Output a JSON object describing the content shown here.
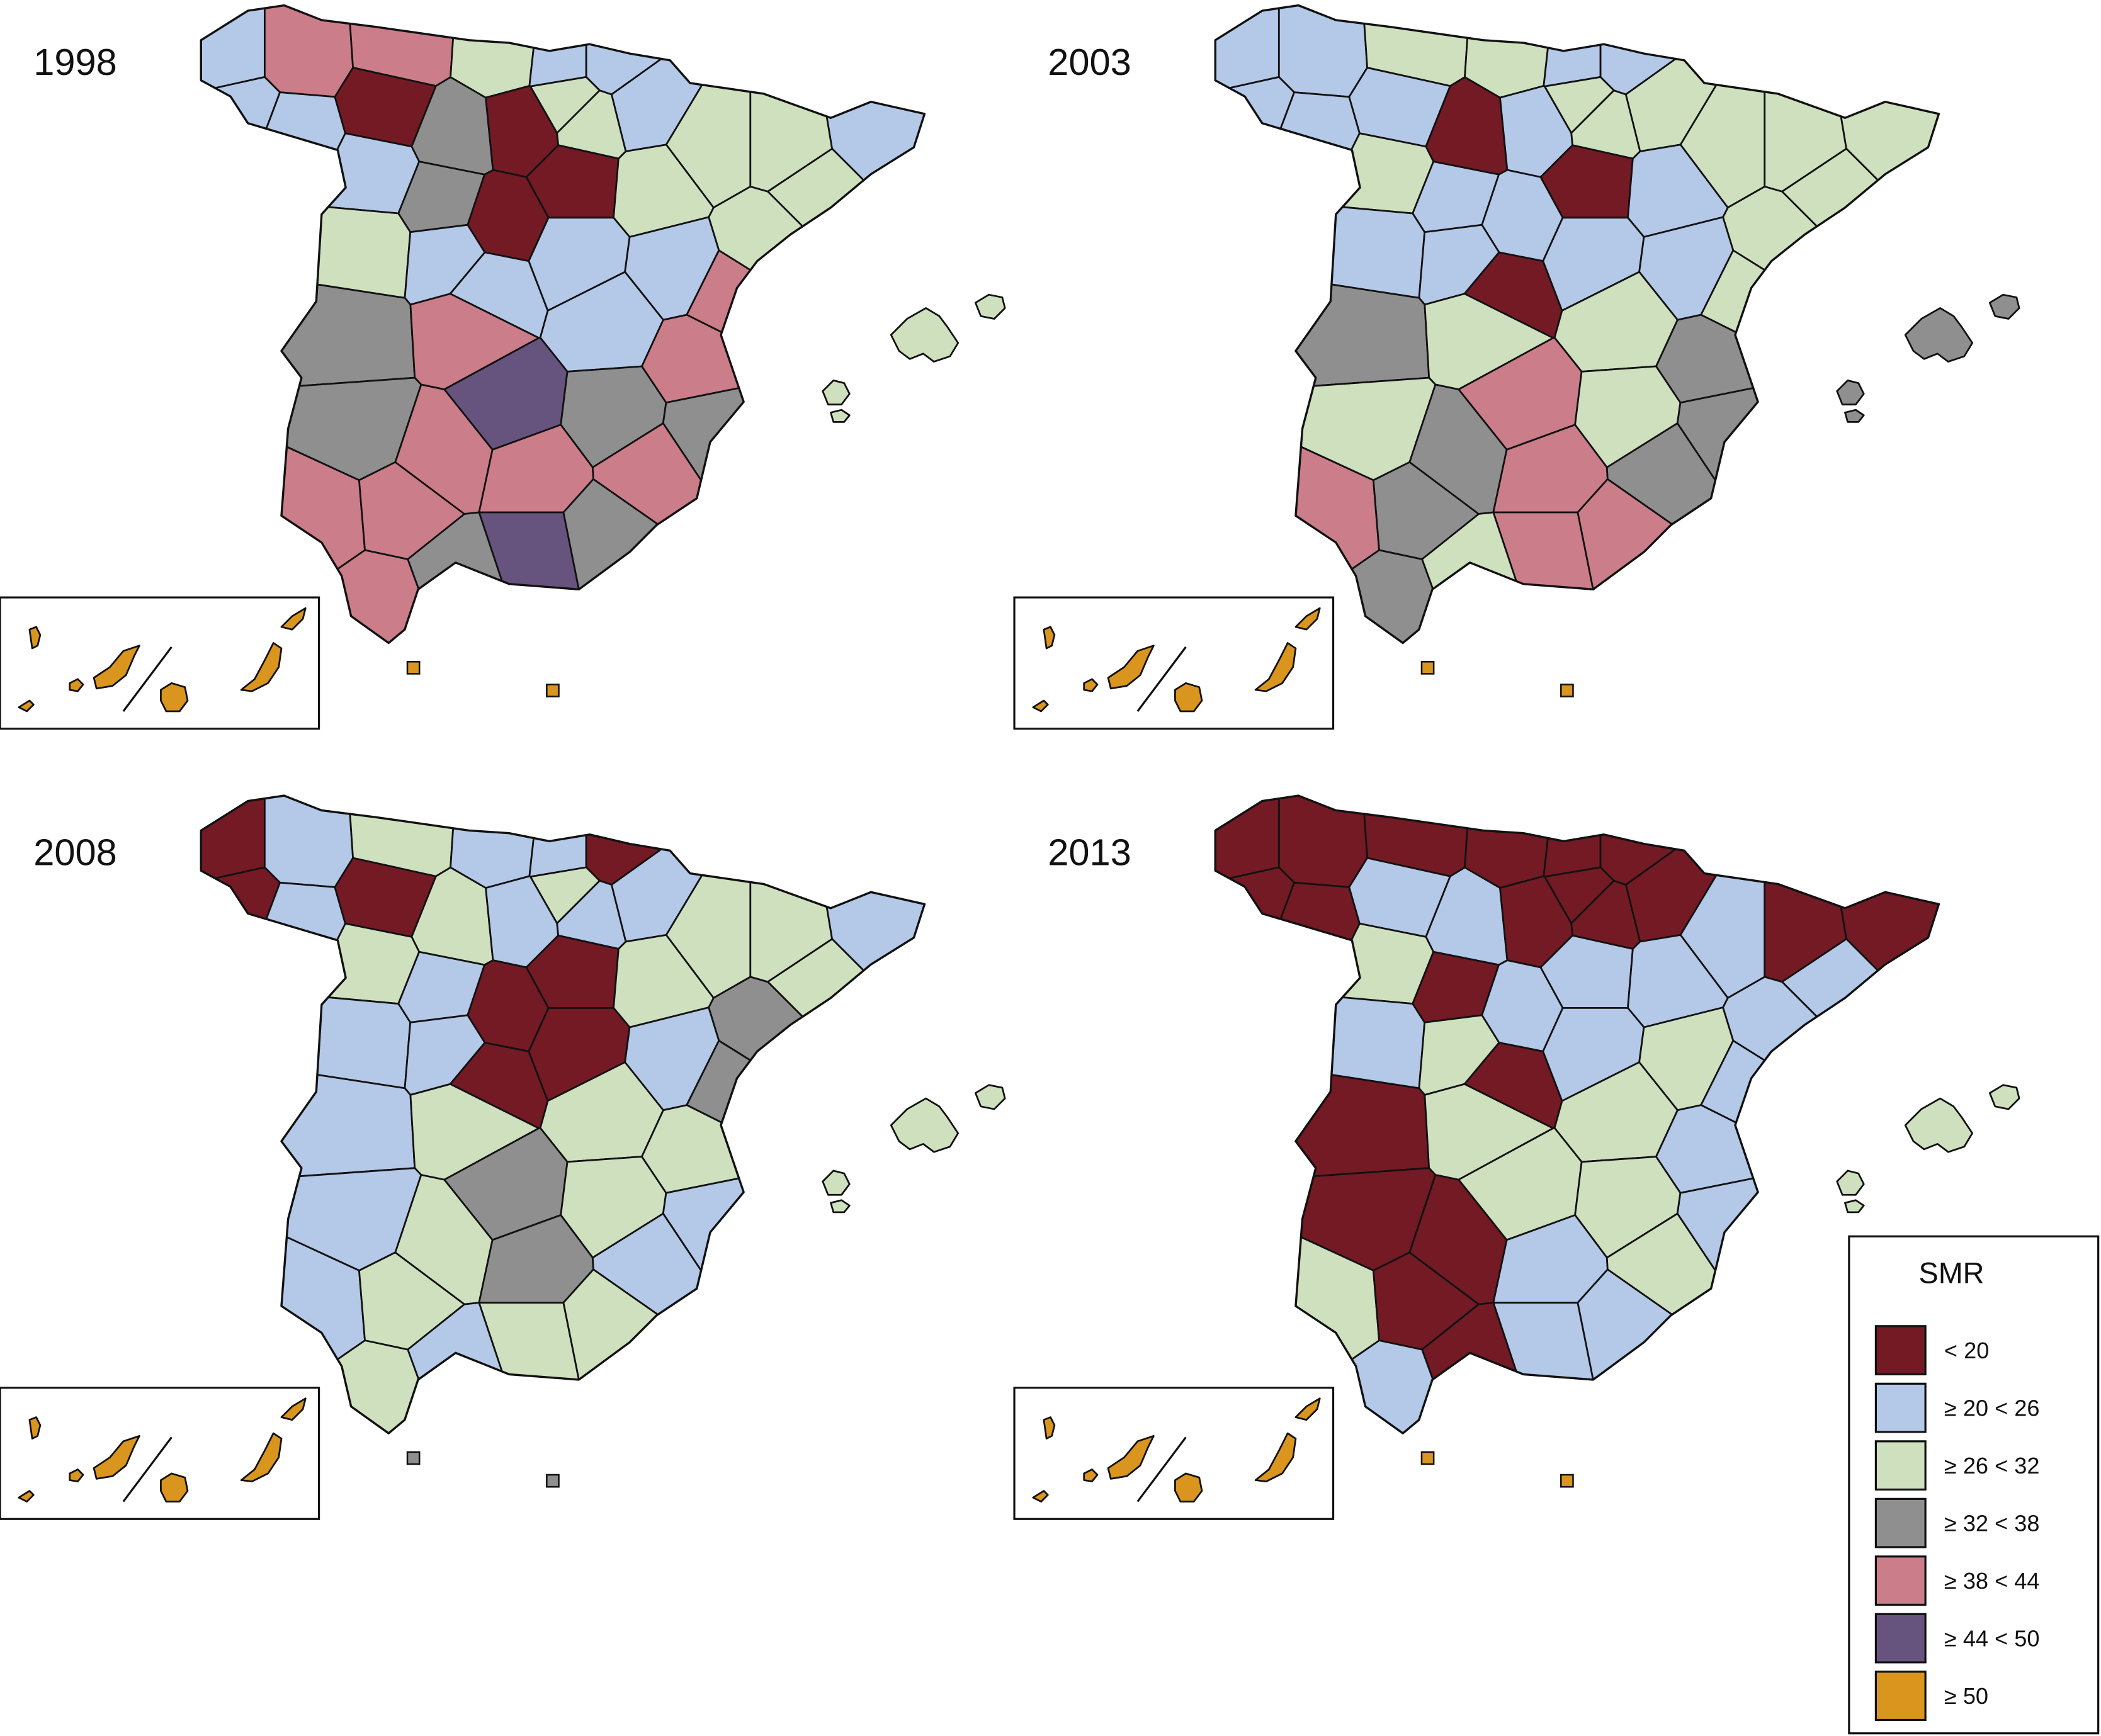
{
  "legend": {
    "title": "SMR",
    "items": [
      {
        "label": "< 20",
        "color": "#731a24"
      },
      {
        "label": "≥ 20 < 26",
        "color": "#b4c8e8"
      },
      {
        "label": "≥ 26 < 32",
        "color": "#cfe0bf"
      },
      {
        "label": "≥ 32 < 38",
        "color": "#8f8f8f"
      },
      {
        "label": "≥ 38 < 44",
        "color": "#cc7d8a"
      },
      {
        "label": "≥ 44 < 50",
        "color": "#67547e"
      },
      {
        "label": "≥ 50",
        "color": "#d9951e"
      }
    ]
  },
  "maps": [
    {
      "year": "1998",
      "provinces": [
        1,
        4,
        1,
        1,
        4,
        0,
        2,
        1,
        1,
        2,
        1,
        3,
        0,
        2,
        1,
        3,
        0,
        0,
        2,
        2,
        1,
        2,
        2,
        2,
        2,
        1,
        1,
        1,
        1,
        4,
        3,
        4,
        1,
        4,
        3,
        5,
        3,
        3,
        4,
        4,
        4,
        4,
        4,
        5,
        3,
        3,
        4
      ],
      "balearics": 2,
      "canaries": 6,
      "ceuta": 6,
      "melilla": 6
    },
    {
      "year": "2003",
      "provinces": [
        1,
        1,
        1,
        1,
        2,
        1,
        2,
        1,
        1,
        2,
        2,
        0,
        1,
        2,
        2,
        1,
        0,
        1,
        2,
        2,
        2,
        2,
        2,
        1,
        1,
        1,
        0,
        1,
        1,
        2,
        3,
        2,
        2,
        3,
        2,
        4,
        2,
        3,
        4,
        3,
        3,
        4,
        3,
        4,
        4,
        2,
        3
      ],
      "balearics": 3,
      "canaries": 6,
      "ceuta": 6,
      "melilla": 6
    },
    {
      "year": "2008",
      "provinces": [
        0,
        1,
        0,
        1,
        2,
        0,
        1,
        1,
        0,
        2,
        1,
        2,
        1,
        1,
        2,
        1,
        0,
        0,
        2,
        2,
        1,
        2,
        3,
        2,
        1,
        1,
        0,
        0,
        1,
        3,
        1,
        2,
        2,
        2,
        1,
        3,
        2,
        1,
        1,
        2,
        2,
        3,
        1,
        2,
        2,
        1,
        2
      ],
      "balearics": 2,
      "canaries": 6,
      "ceuta": 3,
      "melilla": 3
    },
    {
      "year": "2013",
      "provinces": [
        0,
        0,
        0,
        0,
        0,
        1,
        0,
        0,
        0,
        0,
        0,
        1,
        0,
        0,
        2,
        0,
        1,
        1,
        1,
        0,
        0,
        1,
        1,
        1,
        1,
        2,
        0,
        1,
        2,
        1,
        0,
        2,
        2,
        1,
        0,
        2,
        2,
        1,
        2,
        0,
        0,
        1,
        2,
        1,
        1,
        0,
        1
      ],
      "balearics": 2,
      "canaries": 6,
      "ceuta": 6,
      "melilla": 6
    }
  ]
}
